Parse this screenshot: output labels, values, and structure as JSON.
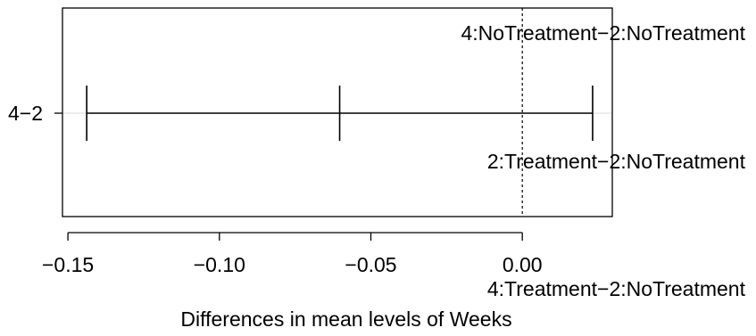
{
  "chart_data": {
    "type": "errorbar",
    "title": "",
    "xlabel": "Differences in mean levels of Weeks",
    "xlim": [
      -0.1518,
      0.0297
    ],
    "x_ticks": [
      -0.15,
      -0.1,
      -0.05,
      0.0
    ],
    "x_tick_labels": [
      "−0.15",
      "−0.10",
      "−0.05",
      "0.00"
    ],
    "reference_line": 0.0,
    "grid": false,
    "comparisons": [
      {
        "label": "4−2",
        "estimate": -0.0603,
        "lower": -0.1438,
        "upper": 0.0232
      }
    ],
    "annotations": [
      "4:NoTreatment−2:NoTreatment",
      "2:Treatment−2:NoTreatment",
      "4:Treatment−2:NoTreatment"
    ]
  }
}
